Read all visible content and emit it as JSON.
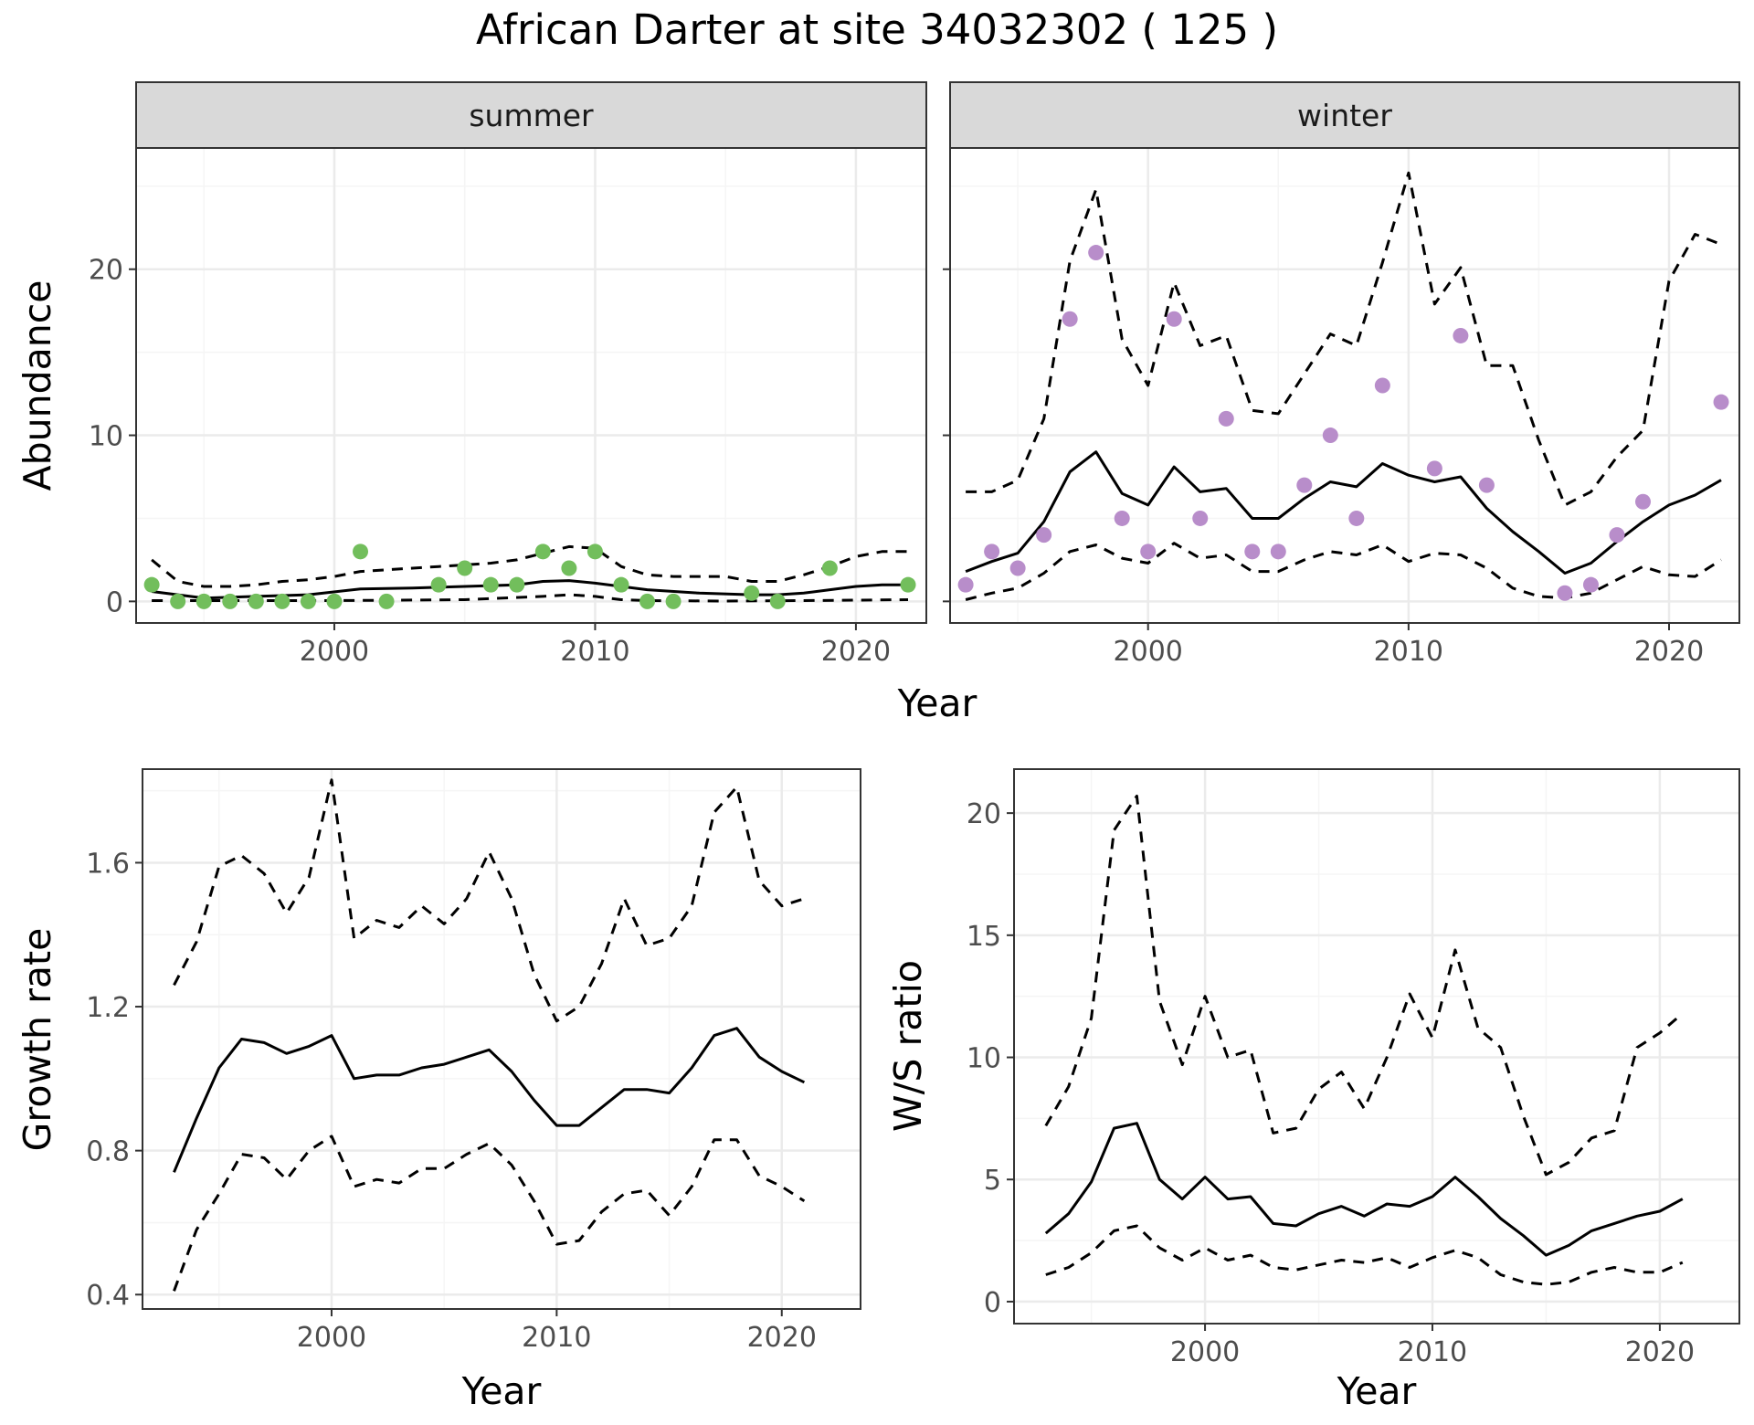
{
  "title": "African Darter at site 34032302 ( 125 )",
  "colors": {
    "summer_points": "#72BE5C",
    "winter_points": "#B88DCA",
    "lines": "#000000",
    "panel_border": "#333333",
    "strip_fill": "#D9D9D9",
    "grid_major": "#EBEBEB",
    "grid_minor": "#F5F5F5"
  },
  "chart_data": [
    {
      "id": "abundance",
      "type": "line",
      "facets": [
        "summer",
        "winter"
      ],
      "xlabel": "Year",
      "ylabel": "Abundance",
      "xlim": [
        1992.4,
        2022.7
      ],
      "ylim": [
        -1.3,
        27.3
      ],
      "xticks": [
        2000,
        2010,
        2020
      ],
      "yticks": [
        0,
        10,
        20
      ],
      "grid": true,
      "legend": "none",
      "panels": [
        {
          "facet": "summer",
          "points": {
            "x": [
              1993,
              1994,
              1995,
              1996,
              1997,
              1998,
              1999,
              2000,
              2001,
              2002,
              2004,
              2005,
              2006,
              2007,
              2008,
              2009,
              2010,
              2011,
              2012,
              2013,
              2016,
              2017,
              2019,
              2022
            ],
            "y": [
              1,
              0,
              0,
              0,
              0,
              0,
              0,
              0,
              3,
              0,
              1,
              2,
              1,
              1,
              3,
              2,
              3,
              1,
              0,
              0,
              0.5,
              0,
              2,
              1
            ]
          },
          "fit": {
            "x": [
              1993,
              1995,
              1997,
              1999,
              2001,
              2003,
              2005,
              2007,
              2008,
              2009,
              2010,
              2012,
              2014,
              2016,
              2017,
              2018,
              2019,
              2020,
              2021,
              2022
            ],
            "y": [
              0.6,
              0.2,
              0.3,
              0.4,
              0.75,
              0.8,
              0.9,
              1.0,
              1.2,
              1.25,
              1.1,
              0.7,
              0.5,
              0.4,
              0.4,
              0.5,
              0.7,
              0.9,
              1.0,
              1.0
            ]
          },
          "upper": {
            "x": [
              1993,
              1994,
              1995,
              1996,
              1997,
              1998,
              1999,
              2000,
              2001,
              2002,
              2003,
              2004,
              2005,
              2006,
              2007,
              2008,
              2009,
              2010,
              2011,
              2012,
              2013,
              2014,
              2015,
              2016,
              2017,
              2018,
              2019,
              2020,
              2021,
              2022
            ],
            "y": [
              2.5,
              1.2,
              0.9,
              0.9,
              1.0,
              1.2,
              1.3,
              1.5,
              1.8,
              1.9,
              2.0,
              2.1,
              2.2,
              2.3,
              2.5,
              2.9,
              3.3,
              3.2,
              2.1,
              1.6,
              1.5,
              1.5,
              1.5,
              1.2,
              1.2,
              1.6,
              2.1,
              2.7,
              3.0,
              3.0
            ]
          },
          "lower": {
            "x": [
              1993,
              1997,
              2000,
              2005,
              2008,
              2009,
              2010,
              2011,
              2012,
              2015,
              2018,
              2022
            ],
            "y": [
              0.05,
              0.05,
              0.05,
              0.1,
              0.3,
              0.4,
              0.3,
              0.1,
              0.05,
              0.02,
              0.05,
              0.1
            ]
          }
        },
        {
          "facet": "winter",
          "points": {
            "x": [
              1993,
              1994,
              1995,
              1996,
              1997,
              1998,
              1999,
              2000,
              2001,
              2002,
              2003,
              2004,
              2005,
              2006,
              2007,
              2008,
              2009,
              2011,
              2012,
              2013,
              2016,
              2017,
              2018,
              2019,
              2022
            ],
            "y": [
              1,
              3,
              2,
              4,
              17,
              21,
              5,
              3,
              17,
              5,
              11,
              3,
              3,
              7,
              10,
              5,
              13,
              8,
              16,
              7,
              0.5,
              1,
              4,
              6,
              12
            ]
          },
          "fit": {
            "x": [
              1993,
              1994,
              1995,
              1996,
              1997,
              1998,
              1999,
              2000,
              2001,
              2002,
              2003,
              2004,
              2005,
              2006,
              2007,
              2008,
              2009,
              2010,
              2011,
              2012,
              2013,
              2014,
              2015,
              2016,
              2017,
              2018,
              2019,
              2020,
              2021,
              2022
            ],
            "y": [
              1.8,
              2.4,
              2.9,
              4.8,
              7.8,
              9.0,
              6.5,
              5.8,
              8.1,
              6.6,
              6.8,
              5.0,
              5.0,
              6.2,
              7.2,
              6.9,
              8.3,
              7.6,
              7.2,
              7.5,
              5.6,
              4.2,
              3.0,
              1.7,
              2.3,
              3.6,
              4.8,
              5.8,
              6.4,
              7.3
            ]
          },
          "upper": {
            "x": [
              1993,
              1994,
              1995,
              1996,
              1997,
              1998,
              1999,
              2000,
              2001,
              2002,
              2003,
              2004,
              2005,
              2006,
              2007,
              2008,
              2009,
              2010,
              2011,
              2012,
              2013,
              2014,
              2015,
              2016,
              2017,
              2018,
              2019,
              2020,
              2021,
              2022
            ],
            "y": [
              6.6,
              6.6,
              7.3,
              11.0,
              20.5,
              24.8,
              15.8,
              13.0,
              19.2,
              15.4,
              16.0,
              11.5,
              11.3,
              13.7,
              16.1,
              15.4,
              20.4,
              25.8,
              17.9,
              20.1,
              14.2,
              14.2,
              9.7,
              5.8,
              6.6,
              8.7,
              10.3,
              19.3,
              22.1,
              21.5
            ]
          },
          "lower": {
            "x": [
              1993,
              1994,
              1995,
              1996,
              1997,
              1998,
              1999,
              2000,
              2001,
              2002,
              2003,
              2004,
              2005,
              2006,
              2007,
              2008,
              2009,
              2010,
              2011,
              2012,
              2013,
              2014,
              2015,
              2016,
              2017,
              2018,
              2019,
              2020,
              2021,
              2022
            ],
            "y": [
              0.1,
              0.5,
              0.8,
              1.7,
              3.0,
              3.4,
              2.6,
              2.3,
              3.5,
              2.6,
              2.8,
              1.8,
              1.8,
              2.5,
              3.0,
              2.8,
              3.4,
              2.4,
              2.9,
              2.8,
              2.0,
              0.8,
              0.3,
              0.2,
              0.5,
              1.3,
              2.1,
              1.6,
              1.5,
              2.5
            ]
          }
        }
      ]
    },
    {
      "id": "growth",
      "type": "line",
      "xlabel": "Year",
      "ylabel": "Growth rate",
      "xlim": [
        1991.6,
        2023.5
      ],
      "ylim": [
        0.36,
        1.86
      ],
      "xticks": [
        2000,
        2010,
        2020
      ],
      "yticks": [
        0.4,
        0.8,
        1.2,
        1.6
      ],
      "grid": true,
      "legend": "none",
      "series": [
        {
          "style": "solid",
          "x": [
            1993,
            1994,
            1995,
            1996,
            1997,
            1998,
            1999,
            2000,
            2001,
            2002,
            2003,
            2004,
            2005,
            2006,
            2007,
            2008,
            2009,
            2010,
            2011,
            2012,
            2013,
            2014,
            2015,
            2016,
            2017,
            2018,
            2019,
            2020,
            2021
          ],
          "y": [
            0.74,
            0.89,
            1.03,
            1.11,
            1.1,
            1.07,
            1.09,
            1.12,
            1.0,
            1.01,
            1.01,
            1.03,
            1.04,
            1.06,
            1.08,
            1.02,
            0.94,
            0.87,
            0.87,
            0.92,
            0.97,
            0.97,
            0.96,
            1.03,
            1.12,
            1.14,
            1.06,
            1.02,
            0.99
          ]
        },
        {
          "style": "dashed",
          "x": [
            1993,
            1994,
            1995,
            1996,
            1997,
            1998,
            1999,
            2000,
            2001,
            2002,
            2003,
            2004,
            2005,
            2006,
            2007,
            2008,
            2009,
            2010,
            2011,
            2012,
            2013,
            2014,
            2015,
            2016,
            2017,
            2018,
            2019,
            2020,
            2021
          ],
          "y": [
            1.26,
            1.38,
            1.59,
            1.62,
            1.57,
            1.46,
            1.56,
            1.83,
            1.39,
            1.44,
            1.42,
            1.48,
            1.43,
            1.5,
            1.63,
            1.5,
            1.29,
            1.16,
            1.2,
            1.32,
            1.5,
            1.37,
            1.39,
            1.48,
            1.74,
            1.81,
            1.55,
            1.48,
            1.5
          ]
        },
        {
          "style": "dashed",
          "x": [
            1993,
            1994,
            1995,
            1996,
            1997,
            1998,
            1999,
            2000,
            2001,
            2002,
            2003,
            2004,
            2005,
            2006,
            2007,
            2008,
            2009,
            2010,
            2011,
            2012,
            2013,
            2014,
            2015,
            2016,
            2017,
            2018,
            2019,
            2020,
            2021
          ],
          "y": [
            0.41,
            0.58,
            0.68,
            0.79,
            0.78,
            0.72,
            0.8,
            0.84,
            0.7,
            0.72,
            0.71,
            0.75,
            0.75,
            0.79,
            0.82,
            0.76,
            0.66,
            0.54,
            0.55,
            0.63,
            0.68,
            0.69,
            0.62,
            0.7,
            0.83,
            0.83,
            0.73,
            0.7,
            0.66
          ]
        }
      ]
    },
    {
      "id": "ws_ratio",
      "type": "line",
      "xlabel": "Year",
      "ylabel": "W/S ratio",
      "xlim": [
        1991.6,
        2023.5
      ],
      "ylim": [
        -0.9,
        21.8
      ],
      "xticks": [
        2000,
        2010,
        2020
      ],
      "yticks": [
        0,
        5,
        10,
        15,
        20
      ],
      "grid": true,
      "legend": "none",
      "series": [
        {
          "style": "solid",
          "x": [
            1993,
            1994,
            1995,
            1996,
            1997,
            1998,
            1999,
            2000,
            2001,
            2002,
            2003,
            2004,
            2005,
            2006,
            2007,
            2008,
            2009,
            2010,
            2011,
            2012,
            2013,
            2014,
            2015,
            2016,
            2017,
            2018,
            2019,
            2020,
            2021
          ],
          "y": [
            2.8,
            3.6,
            4.9,
            7.1,
            7.3,
            5.0,
            4.2,
            5.1,
            4.2,
            4.3,
            3.2,
            3.1,
            3.6,
            3.9,
            3.5,
            4.0,
            3.9,
            4.3,
            5.1,
            4.3,
            3.4,
            2.7,
            1.9,
            2.3,
            2.9,
            3.2,
            3.5,
            3.7,
            4.2
          ]
        },
        {
          "style": "dashed",
          "x": [
            1993,
            1994,
            1995,
            1996,
            1997,
            1998,
            1999,
            2000,
            2001,
            2002,
            2003,
            2004,
            2005,
            2006,
            2007,
            2008,
            2009,
            2010,
            2011,
            2012,
            2013,
            2014,
            2015,
            2016,
            2017,
            2018,
            2019,
            2020,
            2021
          ],
          "y": [
            7.2,
            8.8,
            11.6,
            19.3,
            20.7,
            12.3,
            9.7,
            12.5,
            10.0,
            10.3,
            6.9,
            7.1,
            8.7,
            9.4,
            7.9,
            10.0,
            12.6,
            10.8,
            14.4,
            11.2,
            10.4,
            7.6,
            5.2,
            5.7,
            6.7,
            7.0,
            10.4,
            11.0,
            11.8
          ]
        },
        {
          "style": "dashed",
          "x": [
            1993,
            1994,
            1995,
            1996,
            1997,
            1998,
            1999,
            2000,
            2001,
            2002,
            2003,
            2004,
            2005,
            2006,
            2007,
            2008,
            2009,
            2010,
            2011,
            2012,
            2013,
            2014,
            2015,
            2016,
            2017,
            2018,
            2019,
            2020,
            2021
          ],
          "y": [
            1.1,
            1.4,
            2.0,
            2.9,
            3.1,
            2.2,
            1.7,
            2.2,
            1.7,
            1.9,
            1.4,
            1.3,
            1.5,
            1.7,
            1.6,
            1.8,
            1.4,
            1.8,
            2.1,
            1.8,
            1.1,
            0.8,
            0.7,
            0.8,
            1.2,
            1.4,
            1.2,
            1.2,
            1.6
          ]
        }
      ]
    }
  ]
}
